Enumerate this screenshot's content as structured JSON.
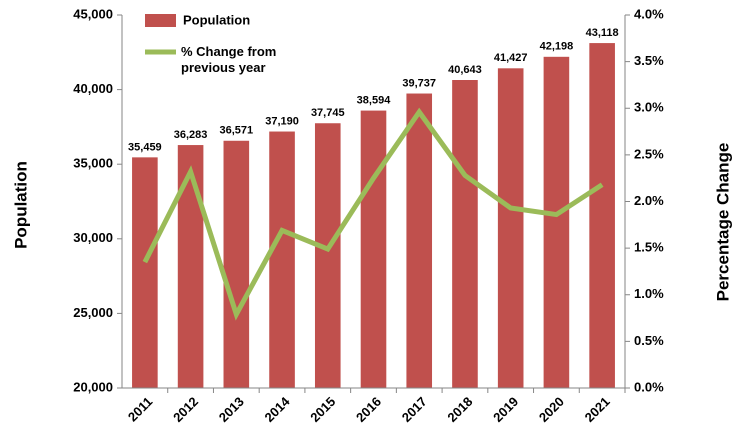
{
  "chart_data": {
    "type": "combo",
    "categories": [
      "2011",
      "2012",
      "2013",
      "2014",
      "2015",
      "2016",
      "2017",
      "2018",
      "2019",
      "2020",
      "2021"
    ],
    "series": [
      {
        "name": "Population",
        "type": "bar",
        "color": "#c0504d",
        "values": [
          35459,
          36283,
          36571,
          37190,
          37745,
          38594,
          39737,
          40643,
          41427,
          42198,
          43118
        ],
        "value_labels": [
          "35,459",
          "36,283",
          "36,571",
          "37,190",
          "37,745",
          "38,594",
          "39,737",
          "40,643",
          "41,427",
          "42,198",
          "43,118"
        ]
      },
      {
        "name": "% Change from previous year",
        "type": "line",
        "color": "#9bbb59",
        "axis": "y2",
        "values": [
          1.35,
          2.32,
          0.79,
          1.69,
          1.49,
          2.25,
          2.96,
          2.28,
          1.93,
          1.86,
          2.18
        ]
      }
    ],
    "ylabel": "Population",
    "y2label": "Percentage Change",
    "ylim": [
      20000,
      45000
    ],
    "yticks": [
      {
        "value": 20000,
        "label": "20,000"
      },
      {
        "value": 25000,
        "label": "25,000"
      },
      {
        "value": 30000,
        "label": "30,000"
      },
      {
        "value": 35000,
        "label": "35,000"
      },
      {
        "value": 40000,
        "label": "40,000"
      },
      {
        "value": 45000,
        "label": "45,000"
      }
    ],
    "y2lim": [
      0,
      4
    ],
    "y2ticks": [
      {
        "value": 0,
        "label": "0.0%"
      },
      {
        "value": 0.5,
        "label": "0.5%"
      },
      {
        "value": 1,
        "label": "1.0%"
      },
      {
        "value": 1.5,
        "label": "1.5%"
      },
      {
        "value": 2,
        "label": "2.0%"
      },
      {
        "value": 2.5,
        "label": "2.5%"
      },
      {
        "value": 3,
        "label": "3.0%"
      },
      {
        "value": 3.5,
        "label": "3.5%"
      },
      {
        "value": 4,
        "label": "4.0%"
      }
    ],
    "grid": false
  }
}
